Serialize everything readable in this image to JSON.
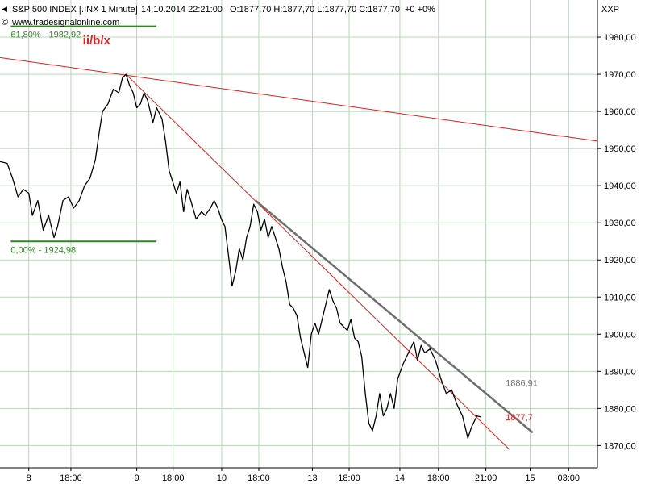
{
  "header": {
    "symbol": "S&P 500 INDEX [.INX  1 Minute]",
    "datetime": "14.10.2014 22:21:00",
    "ohlc": "O:1877,70 H:1877,70 L:1877,70 C:1877,70",
    "change": "+0 +0%",
    "source": "www.tradesignalonline.com",
    "exchange": "XXP"
  },
  "colors": {
    "price": "#000000",
    "fib": "#2a8a1a",
    "trend_red": "#e02020",
    "trend_gray": "#6e6e6e",
    "grid": "#b8d8b8",
    "wave_label": "#e02020",
    "change": "#20a020"
  },
  "chart_data": {
    "type": "line",
    "title": "S&P 500 INDEX [.INX  1 Minute]",
    "ylim": [
      1864,
      1990
    ],
    "y_ticks": [
      "1870,00",
      "1880,00",
      "1890,00",
      "1900,00",
      "1910,00",
      "1920,00",
      "1930,00",
      "1940,00",
      "1950,00",
      "1960,00",
      "1970,00",
      "1980,00"
    ],
    "y_tick_values": [
      1870,
      1880,
      1890,
      1900,
      1910,
      1920,
      1930,
      1940,
      1950,
      1960,
      1970,
      1980
    ],
    "x_ticks": [
      "8",
      "18:00",
      "9",
      "18:00",
      "10",
      "18:00",
      "13",
      "18:00",
      "14",
      "18:00",
      "21:00",
      "15",
      "03:00"
    ],
    "x_tick_pos": [
      0,
      1,
      2,
      3,
      4,
      5,
      6,
      7,
      8,
      9,
      10,
      11,
      12
    ],
    "x_tick_slot": [
      0,
      1.17,
      3.0,
      4.01,
      5.36,
      6.39,
      7.88,
      8.9,
      10.31,
      11.38,
      12.7,
      13.93,
      15
    ],
    "xlim": [
      -0.8,
      15.8
    ],
    "series": [
      {
        "values": [
          [
            -0.8,
            1946.5
          ],
          [
            -0.6,
            1946
          ],
          [
            -0.45,
            1942
          ],
          [
            -0.3,
            1937
          ],
          [
            -0.15,
            1939
          ],
          [
            0.0,
            1938
          ],
          [
            0.1,
            1932
          ],
          [
            0.25,
            1936
          ],
          [
            0.4,
            1928
          ],
          [
            0.55,
            1932
          ],
          [
            0.7,
            1926
          ],
          [
            0.8,
            1929
          ],
          [
            0.95,
            1936
          ],
          [
            1.1,
            1937
          ],
          [
            1.25,
            1934
          ],
          [
            1.4,
            1936
          ],
          [
            1.55,
            1940
          ],
          [
            1.7,
            1942
          ],
          [
            1.85,
            1947
          ],
          [
            1.95,
            1954
          ],
          [
            2.05,
            1960
          ],
          [
            2.2,
            1962
          ],
          [
            2.35,
            1966
          ],
          [
            2.5,
            1965
          ],
          [
            2.6,
            1969
          ],
          [
            2.7,
            1970
          ],
          [
            2.8,
            1967
          ],
          [
            2.9,
            1965
          ],
          [
            3.0,
            1961
          ],
          [
            3.1,
            1962
          ],
          [
            3.2,
            1965
          ],
          [
            3.3,
            1963
          ],
          [
            3.45,
            1957
          ],
          [
            3.55,
            1961
          ],
          [
            3.7,
            1958
          ],
          [
            3.8,
            1952
          ],
          [
            3.9,
            1944
          ],
          [
            4.0,
            1941
          ],
          [
            4.1,
            1938
          ],
          [
            4.2,
            1941
          ],
          [
            4.3,
            1933
          ],
          [
            4.4,
            1939
          ],
          [
            4.5,
            1936
          ],
          [
            4.65,
            1931
          ],
          [
            4.8,
            1933
          ],
          [
            4.9,
            1932
          ],
          [
            5.05,
            1934
          ],
          [
            5.15,
            1936
          ],
          [
            5.25,
            1934
          ],
          [
            5.35,
            1931
          ],
          [
            5.45,
            1929
          ],
          [
            5.55,
            1921
          ],
          [
            5.65,
            1913
          ],
          [
            5.75,
            1917
          ],
          [
            5.85,
            1923
          ],
          [
            5.95,
            1920
          ],
          [
            6.05,
            1926
          ],
          [
            6.15,
            1929
          ],
          [
            6.25,
            1935
          ],
          [
            6.35,
            1933
          ],
          [
            6.45,
            1928
          ],
          [
            6.55,
            1931
          ],
          [
            6.65,
            1926
          ],
          [
            6.75,
            1929
          ],
          [
            6.85,
            1926
          ],
          [
            6.95,
            1923
          ],
          [
            7.05,
            1918
          ],
          [
            7.15,
            1914
          ],
          [
            7.25,
            1908
          ],
          [
            7.35,
            1907
          ],
          [
            7.45,
            1905
          ],
          [
            7.55,
            1899
          ],
          [
            7.65,
            1895
          ],
          [
            7.75,
            1891
          ],
          [
            7.85,
            1900
          ],
          [
            7.95,
            1903
          ],
          [
            8.05,
            1900
          ],
          [
            8.15,
            1904
          ],
          [
            8.25,
            1908
          ],
          [
            8.35,
            1912
          ],
          [
            8.45,
            1909
          ],
          [
            8.55,
            1907
          ],
          [
            8.65,
            1903
          ],
          [
            8.75,
            1902
          ],
          [
            8.85,
            1901
          ],
          [
            8.95,
            1904
          ],
          [
            9.05,
            1899
          ],
          [
            9.15,
            1898
          ],
          [
            9.25,
            1894
          ],
          [
            9.35,
            1884
          ],
          [
            9.45,
            1876
          ],
          [
            9.55,
            1874
          ],
          [
            9.65,
            1878
          ],
          [
            9.75,
            1884
          ],
          [
            9.85,
            1878
          ],
          [
            9.95,
            1880
          ],
          [
            10.05,
            1884
          ],
          [
            10.15,
            1880
          ],
          [
            10.25,
            1888
          ],
          [
            10.4,
            1892
          ],
          [
            10.5,
            1894
          ],
          [
            10.6,
            1896
          ],
          [
            10.7,
            1898
          ],
          [
            10.8,
            1893
          ],
          [
            10.9,
            1897
          ],
          [
            11.0,
            1895
          ],
          [
            11.15,
            1896
          ],
          [
            11.3,
            1893
          ],
          [
            11.45,
            1888
          ],
          [
            11.6,
            1884
          ],
          [
            11.75,
            1885
          ],
          [
            11.9,
            1881
          ],
          [
            12.05,
            1878
          ],
          [
            12.2,
            1872
          ],
          [
            12.3,
            1875
          ],
          [
            12.45,
            1878
          ],
          [
            12.55,
            1877.7
          ]
        ]
      }
    ],
    "trend_lines": [
      {
        "kind": "red",
        "from": [
          -0.8,
          1974.5
        ],
        "to": [
          15.8,
          1952
        ]
      },
      {
        "kind": "red",
        "from": [
          2.7,
          1970
        ],
        "to": [
          13.35,
          1869
        ]
      },
      {
        "kind": "gray",
        "from": [
          6.3,
          1936
        ],
        "to": [
          14.0,
          1873.5
        ]
      }
    ],
    "fib_levels": [
      {
        "label": "61,80% - 1982,92",
        "value": 1982.92
      },
      {
        "label": "0,00% - 1924,98",
        "value": 1924.98
      }
    ],
    "annotations": [
      {
        "text": "ii/b/x",
        "at": [
          1.5,
          1978
        ]
      },
      {
        "text": "1886,91",
        "value": 1886.91
      },
      {
        "text": "1877,7",
        "value": 1877.7
      }
    ],
    "grid": true
  }
}
